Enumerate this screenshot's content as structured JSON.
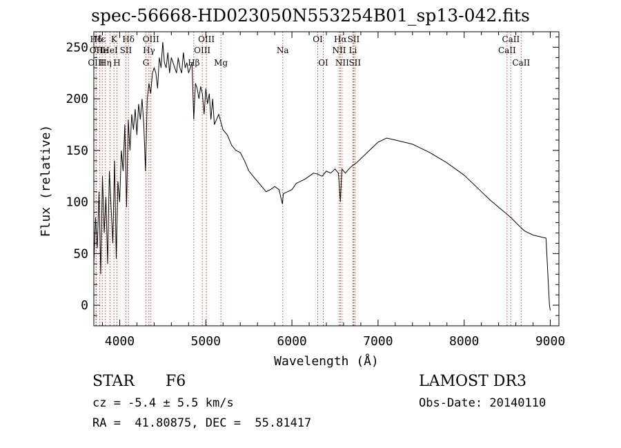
{
  "chart_data": {
    "type": "line",
    "title": "spec-56668-HD023050N553254B01_sp13-042.fits",
    "xlabel": "Wavelength (Å)",
    "ylabel": "Flux (relative)",
    "xlim": [
      3700,
      9100
    ],
    "ylim": [
      -20,
      265
    ],
    "xticks": [
      4000,
      5000,
      6000,
      7000,
      8000,
      9000
    ],
    "yticks": [
      0,
      50,
      100,
      150,
      200,
      250
    ],
    "grid": false,
    "series": [
      {
        "x": [
          3700,
          3720,
          3740,
          3760,
          3780,
          3800,
          3820,
          3840,
          3860,
          3880,
          3900,
          3920,
          3940,
          3960,
          3980,
          4000,
          4020,
          4040,
          4060,
          4080,
          4100,
          4120,
          4140,
          4160,
          4180,
          4200,
          4220,
          4240,
          4260,
          4280,
          4300,
          4320,
          4340,
          4360,
          4380,
          4400,
          4420,
          4440,
          4460,
          4480,
          4500,
          4520,
          4540,
          4560,
          4580,
          4600,
          4620,
          4640,
          4660,
          4680,
          4700,
          4720,
          4740,
          4760,
          4780,
          4800,
          4820,
          4840,
          4860,
          4880,
          4900,
          4920,
          4940,
          4960,
          4980,
          5000,
          5020,
          5040,
          5060,
          5080,
          5100,
          5150,
          5200,
          5250,
          5300,
          5350,
          5400,
          5450,
          5500,
          5550,
          5600,
          5650,
          5700,
          5750,
          5800,
          5850,
          5890,
          5900,
          5950,
          6000,
          6050,
          6100,
          6150,
          6200,
          6250,
          6300,
          6350,
          6400,
          6450,
          6500,
          6540,
          6563,
          6580,
          6620,
          6660,
          6700,
          6750,
          6800,
          6900,
          7000,
          7100,
          7200,
          7300,
          7400,
          7500,
          7600,
          7700,
          7800,
          7900,
          8000,
          8100,
          8200,
          8300,
          8400,
          8500,
          8542,
          8600,
          8662,
          8700,
          8800,
          8900,
          8950,
          8990,
          9000
        ],
        "y": [
          40,
          85,
          55,
          110,
          30,
          125,
          70,
          105,
          40,
          130,
          95,
          60,
          140,
          45,
          120,
          100,
          150,
          130,
          175,
          95,
          180,
          150,
          185,
          170,
          190,
          165,
          195,
          180,
          200,
          175,
          130,
          200,
          215,
          205,
          225,
          230,
          225,
          210,
          240,
          230,
          255,
          235,
          230,
          245,
          225,
          240,
          235,
          230,
          225,
          240,
          230,
          225,
          245,
          230,
          235,
          225,
          230,
          235,
          180,
          215,
          210,
          200,
          212,
          205,
          185,
          210,
          195,
          205,
          180,
          200,
          175,
          185,
          170,
          165,
          155,
          150,
          148,
          140,
          130,
          125,
          120,
          115,
          110,
          112,
          115,
          112,
          98,
          108,
          110,
          112,
          118,
          120,
          122,
          125,
          128,
          127,
          125,
          130,
          128,
          132,
          128,
          100,
          132,
          128,
          132,
          135,
          138,
          142,
          150,
          158,
          162,
          160,
          158,
          156,
          152,
          148,
          143,
          138,
          132,
          126,
          118,
          110,
          102,
          95,
          88,
          85,
          80,
          75,
          72,
          68,
          66,
          65,
          0,
          -5
        ]
      }
    ],
    "lines": [
      {
        "name": "Hδ",
        "x": 3727,
        "row": 1
      },
      {
        "name": "OII",
        "x": 3727,
        "row": 2
      },
      {
        "name": "OIII",
        "x": 3727,
        "row": 3
      },
      {
        "name": "Hε",
        "x": 3770,
        "row": 1
      },
      {
        "name": "He",
        "x": 3798,
        "row": 2
      },
      {
        "name": "Hη",
        "x": 3835,
        "row": 3
      },
      {
        "name": "K",
        "x": 3934,
        "row": 1
      },
      {
        "name": "HeI",
        "x": 3889,
        "row": 2
      },
      {
        "name": "H",
        "x": 3968,
        "row": 3
      },
      {
        "name": "Hδ",
        "x": 4102,
        "row": 1
      },
      {
        "name": "SII",
        "x": 4072,
        "row": 2
      },
      {
        "name": "OIII",
        "x": 4363,
        "row": 1
      },
      {
        "name": "Hγ",
        "x": 4340,
        "row": 2
      },
      {
        "name": "G",
        "x": 4305,
        "row": 3
      },
      {
        "name": "Hβ",
        "x": 4861,
        "row": 3
      },
      {
        "name": "OIII",
        "x": 4959,
        "row": 2
      },
      {
        "name": "OIII",
        "x": 5007,
        "row": 1
      },
      {
        "name": "Mg",
        "x": 5175,
        "row": 3
      },
      {
        "name": "Na",
        "x": 5893,
        "row": 2
      },
      {
        "name": "OI",
        "x": 6300,
        "row": 1
      },
      {
        "name": "OI",
        "x": 6364,
        "row": 3
      },
      {
        "name": "Hα",
        "x": 6563,
        "row": 1
      },
      {
        "name": "NII",
        "x": 6548,
        "row": 2
      },
      {
        "name": "NII",
        "x": 6583,
        "row": 3
      },
      {
        "name": "SII",
        "x": 6716,
        "row": 1
      },
      {
        "name": "Li",
        "x": 6708,
        "row": 2
      },
      {
        "name": "SII",
        "x": 6731,
        "row": 3
      },
      {
        "name": "CaII",
        "x": 8542,
        "row": 1
      },
      {
        "name": "CaII",
        "x": 8498,
        "row": 2
      },
      {
        "name": "CaII",
        "x": 8662,
        "row": 3
      }
    ]
  },
  "info": {
    "object_class": "STAR",
    "subclass": "F6",
    "survey": "LAMOST DR3",
    "redshift": "cz = -5.4 ± 5.5 km/s",
    "obs_date": "Obs-Date: 20140110",
    "coords": "RA =  41.80875, DEC =  55.81417"
  }
}
